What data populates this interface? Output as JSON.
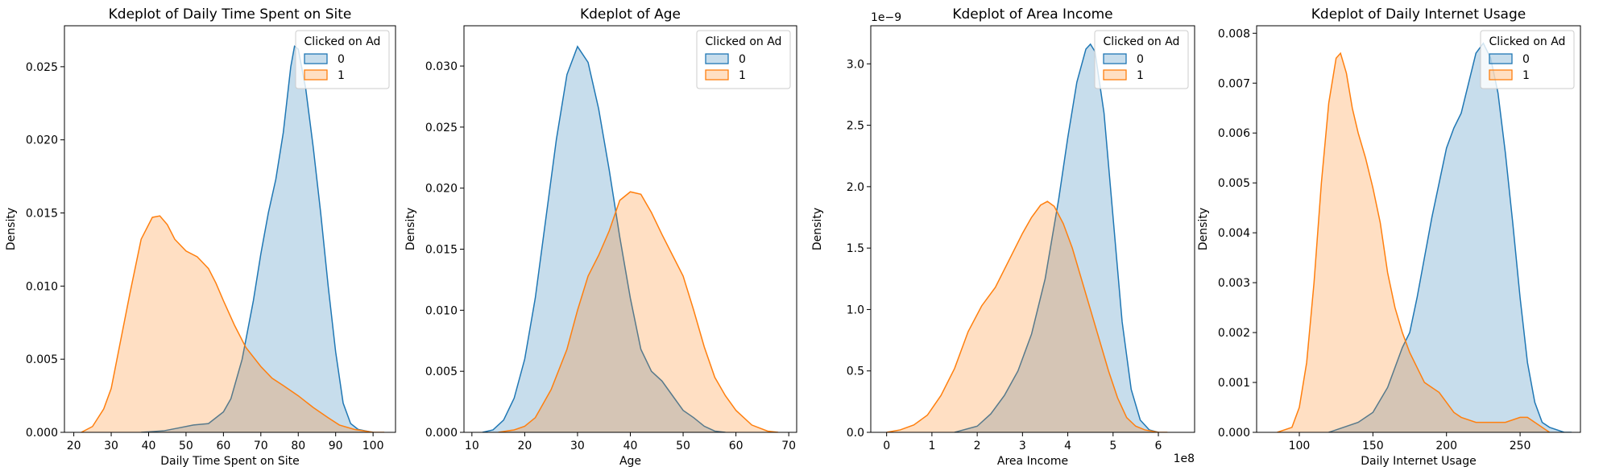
{
  "colors": {
    "class0": "#1f77b4",
    "class1": "#ff7f0e"
  },
  "chart_data": [
    {
      "type": "area",
      "title": "Kdeplot of Daily Time Spent on Site",
      "xlabel": "Daily Time Spent on Site",
      "ylabel": "Density",
      "xlim": [
        17.5,
        106
      ],
      "ylim": [
        0,
        0.0278
      ],
      "xticks": [
        20,
        30,
        40,
        50,
        60,
        70,
        80,
        90,
        100
      ],
      "yticks": [
        0.0,
        0.005,
        0.01,
        0.015,
        0.02,
        0.025
      ],
      "ytick_labels": [
        "0.000",
        "0.005",
        "0.010",
        "0.015",
        "0.020",
        "0.025"
      ],
      "offset_text": "",
      "legend": {
        "title": "Clicked on Ad",
        "entries": [
          "0",
          "1"
        ],
        "placement": "upper right"
      },
      "series": [
        {
          "name": "0",
          "color": "#1f77b4",
          "x": [
            38,
            44,
            48,
            52,
            56,
            60,
            62,
            65,
            68,
            70,
            72,
            74,
            76,
            78,
            79,
            80,
            82,
            84,
            86,
            88,
            90,
            92,
            94,
            96,
            98,
            100
          ],
          "y": [
            0.0,
            0.0001,
            0.0003,
            0.0005,
            0.0006,
            0.0014,
            0.0023,
            0.005,
            0.009,
            0.0122,
            0.015,
            0.0173,
            0.0205,
            0.025,
            0.0264,
            0.0262,
            0.0235,
            0.0195,
            0.015,
            0.01,
            0.0055,
            0.002,
            0.0006,
            0.0002,
            0.0001,
            0.0
          ]
        },
        {
          "name": "1",
          "color": "#ff7f0e",
          "x": [
            22,
            25,
            28,
            30,
            32,
            35,
            38,
            41,
            43,
            45,
            47,
            50,
            53,
            56,
            58,
            60,
            63,
            66,
            70,
            73,
            76,
            80,
            84,
            88,
            91,
            95,
            100,
            103
          ],
          "y": [
            0.0,
            0.0004,
            0.0016,
            0.003,
            0.0056,
            0.0095,
            0.0132,
            0.0147,
            0.0148,
            0.0142,
            0.0132,
            0.0124,
            0.012,
            0.0112,
            0.0102,
            0.009,
            0.0073,
            0.0058,
            0.0045,
            0.0037,
            0.0032,
            0.0025,
            0.0017,
            0.001,
            0.0005,
            0.0002,
            0.0,
            0.0
          ]
        }
      ]
    },
    {
      "type": "area",
      "title": "Kdeplot of Age",
      "xlabel": "Age",
      "ylabel": "Density",
      "xlim": [
        8.5,
        71.5
      ],
      "ylim": [
        0,
        0.0333
      ],
      "xticks": [
        10,
        20,
        30,
        40,
        50,
        60,
        70
      ],
      "yticks": [
        0.0,
        0.005,
        0.01,
        0.015,
        0.02,
        0.025,
        0.03
      ],
      "ytick_labels": [
        "0.000",
        "0.005",
        "0.010",
        "0.015",
        "0.020",
        "0.025",
        "0.030"
      ],
      "offset_text": "",
      "legend": {
        "title": "Clicked on Ad",
        "entries": [
          "0",
          "1"
        ],
        "placement": "upper right"
      },
      "series": [
        {
          "name": "0",
          "color": "#1f77b4",
          "x": [
            12,
            14,
            16,
            18,
            20,
            22,
            24,
            26,
            28,
            30,
            32,
            34,
            36,
            38,
            40,
            42,
            44,
            46,
            48,
            50,
            52,
            54,
            56,
            58
          ],
          "y": [
            0.0,
            0.0002,
            0.001,
            0.0028,
            0.006,
            0.011,
            0.0175,
            0.024,
            0.0293,
            0.0316,
            0.0303,
            0.0265,
            0.0215,
            0.016,
            0.011,
            0.0068,
            0.005,
            0.0042,
            0.003,
            0.0018,
            0.0012,
            0.0005,
            0.0001,
            0.0
          ]
        },
        {
          "name": "1",
          "color": "#ff7f0e",
          "x": [
            15,
            18,
            20,
            22,
            25,
            28,
            30,
            32,
            34,
            36,
            38,
            40,
            42,
            44,
            46,
            48,
            50,
            52,
            54,
            56,
            58,
            60,
            63,
            66,
            68
          ],
          "y": [
            0.0,
            0.0002,
            0.0005,
            0.0012,
            0.0035,
            0.0068,
            0.01,
            0.0128,
            0.0145,
            0.0165,
            0.019,
            0.0197,
            0.0195,
            0.018,
            0.0162,
            0.0145,
            0.0128,
            0.01,
            0.007,
            0.0045,
            0.003,
            0.0018,
            0.0006,
            0.0001,
            0.0
          ]
        }
      ]
    },
    {
      "type": "area",
      "title": "Kdeplot of Area Income",
      "xlabel": "Area Income",
      "ylabel": "Density",
      "xlim": [
        -0.35,
        6.8
      ],
      "ylim": [
        0,
        3.31
      ],
      "xticks": [
        0,
        1,
        2,
        3,
        4,
        5,
        6
      ],
      "yticks": [
        0.0,
        0.5,
        1.0,
        1.5,
        2.0,
        2.5,
        3.0
      ],
      "ytick_labels": [
        "0.0",
        "0.5",
        "1.0",
        "1.5",
        "2.0",
        "2.5",
        "3.0"
      ],
      "offset_text": "1e−9",
      "x_offset_text": "1e8",
      "legend": {
        "title": "Clicked on Ad",
        "entries": [
          "0",
          "1"
        ],
        "placement": "upper right"
      },
      "series": [
        {
          "name": "0",
          "color": "#1f77b4",
          "x": [
            1.5,
            2.0,
            2.3,
            2.6,
            2.9,
            3.2,
            3.5,
            3.8,
            4.0,
            4.2,
            4.4,
            4.5,
            4.6,
            4.8,
            5.0,
            5.2,
            5.4,
            5.6,
            5.8,
            6.0
          ],
          "y": [
            0.0,
            0.05,
            0.15,
            0.3,
            0.5,
            0.8,
            1.25,
            1.9,
            2.4,
            2.85,
            3.12,
            3.16,
            3.1,
            2.6,
            1.75,
            0.9,
            0.35,
            0.1,
            0.02,
            0.0
          ]
        },
        {
          "name": "1",
          "color": "#ff7f0e",
          "x": [
            0.0,
            0.3,
            0.6,
            0.9,
            1.2,
            1.5,
            1.8,
            2.1,
            2.4,
            2.7,
            3.0,
            3.2,
            3.4,
            3.55,
            3.7,
            3.9,
            4.1,
            4.3,
            4.5,
            4.7,
            4.9,
            5.1,
            5.3,
            5.5,
            5.7,
            6.0,
            6.2
          ],
          "y": [
            0.0,
            0.02,
            0.06,
            0.14,
            0.3,
            0.52,
            0.82,
            1.03,
            1.18,
            1.4,
            1.62,
            1.75,
            1.85,
            1.88,
            1.84,
            1.7,
            1.5,
            1.25,
            1.0,
            0.75,
            0.5,
            0.28,
            0.12,
            0.05,
            0.02,
            0.0,
            0.0
          ]
        }
      ]
    },
    {
      "type": "area",
      "title": "Kdeplot of Daily Internet Usage",
      "xlabel": "Daily Internet Usage",
      "ylabel": "Density",
      "xlim": [
        71,
        291
      ],
      "ylim": [
        0,
        0.00815
      ],
      "xticks": [
        100,
        150,
        200,
        250
      ],
      "yticks": [
        0.0,
        0.001,
        0.002,
        0.003,
        0.004,
        0.005,
        0.006,
        0.007,
        0.008
      ],
      "ytick_labels": [
        "0.000",
        "0.001",
        "0.002",
        "0.003",
        "0.004",
        "0.005",
        "0.006",
        "0.007",
        "0.008"
      ],
      "offset_text": "",
      "legend": {
        "title": "Clicked on Ad",
        "entries": [
          "0",
          "1"
        ],
        "placement": "upper right"
      },
      "series": [
        {
          "name": "0",
          "color": "#1f77b4",
          "x": [
            120,
            130,
            140,
            150,
            160,
            165,
            170,
            175,
            180,
            185,
            190,
            195,
            200,
            205,
            210,
            215,
            220,
            225,
            230,
            235,
            240,
            245,
            250,
            255,
            260,
            265,
            270,
            280,
            285
          ],
          "y": [
            0.0,
            0.0001,
            0.0002,
            0.0004,
            0.0009,
            0.0013,
            0.0017,
            0.002,
            0.0027,
            0.0035,
            0.0043,
            0.005,
            0.0057,
            0.0061,
            0.0064,
            0.007,
            0.0076,
            0.0078,
            0.0075,
            0.0068,
            0.0056,
            0.0042,
            0.0027,
            0.0014,
            0.0006,
            0.0002,
            0.0001,
            0.0,
            0.0
          ]
        },
        {
          "name": "1",
          "color": "#ff7f0e",
          "x": [
            85,
            95,
            100,
            105,
            110,
            115,
            120,
            125,
            128,
            132,
            136,
            140,
            145,
            150,
            155,
            160,
            165,
            170,
            175,
            180,
            185,
            190,
            195,
            200,
            205,
            210,
            220,
            230,
            240,
            250,
            255,
            260,
            270
          ],
          "y": [
            0.0,
            0.0001,
            0.0005,
            0.0014,
            0.003,
            0.005,
            0.0066,
            0.0075,
            0.0076,
            0.0072,
            0.0065,
            0.006,
            0.0055,
            0.0049,
            0.0042,
            0.0032,
            0.0025,
            0.002,
            0.0016,
            0.0013,
            0.001,
            0.0009,
            0.0008,
            0.0006,
            0.0004,
            0.0003,
            0.0002,
            0.0002,
            0.0002,
            0.0003,
            0.0003,
            0.0002,
            0.0
          ]
        }
      ]
    }
  ]
}
